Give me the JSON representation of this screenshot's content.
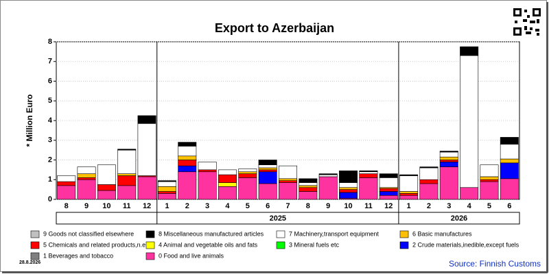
{
  "chart_data": {
    "type": "stacked-bar",
    "title": "Export to Azerbaijan",
    "ylabel": "* Million Euro",
    "categories": [
      "8",
      "9",
      "10",
      "11",
      "12",
      "1",
      "2",
      "3",
      "4",
      "5",
      "6",
      "7",
      "8",
      "9",
      "10",
      "11",
      "12",
      "1",
      "2",
      "3",
      "4",
      "5",
      "6"
    ],
    "years": [
      null,
      null,
      null,
      null,
      null,
      "2025",
      "2025",
      "2025",
      "2025",
      "2025",
      "2025",
      "2025",
      "2025",
      "2025",
      "2025",
      "2025",
      "2025",
      "2026",
      "2026",
      "2026",
      "2026",
      "2026",
      "2026"
    ],
    "ylim": [
      0,
      8
    ],
    "yticks": [
      0,
      1,
      2,
      3,
      4,
      5,
      6,
      7,
      8
    ],
    "grid": true,
    "series": [
      {
        "name": "9 Goods not classified elsewhere",
        "color": "#c0c0c0",
        "values": [
          0,
          0,
          0,
          0,
          0,
          0,
          0,
          0,
          0,
          0,
          0,
          0,
          0,
          0,
          0,
          0,
          0,
          0,
          0,
          0,
          0,
          0,
          0
        ]
      },
      {
        "name": "8 Miscellaneous manufactured articles",
        "color": "#000000",
        "values": [
          0,
          0,
          0,
          0.05,
          0.4,
          0.05,
          0.2,
          0,
          0,
          0,
          0.25,
          0,
          0.2,
          0.05,
          0.6,
          0.05,
          0.2,
          0.05,
          0.05,
          0.05,
          0.45,
          0,
          0.35
        ]
      },
      {
        "name": "7 Machinery,transport equipment",
        "color": "#ffffff",
        "values": [
          0.3,
          0.35,
          1.0,
          1.2,
          2.65,
          0.25,
          0.5,
          0.4,
          0.25,
          0.15,
          0.15,
          0.65,
          0.15,
          0.1,
          0.25,
          0.1,
          0.5,
          0.8,
          0.6,
          0.25,
          6.7,
          0.6,
          0.75
        ]
      },
      {
        "name": "6 Basic manufactures",
        "color": "#ffc000",
        "values": [
          0,
          0.2,
          0,
          0.1,
          0,
          0.25,
          0.2,
          0,
          0,
          0.1,
          0.1,
          0.1,
          0.1,
          0,
          0.1,
          0,
          0.05,
          0.1,
          0,
          0.15,
          0,
          0.15,
          0.2
        ]
      },
      {
        "name": "5 Chemicals and related products,n.e.s.",
        "color": "#ff0000",
        "values": [
          0.2,
          0.1,
          0.3,
          0.5,
          0.05,
          0.1,
          0.3,
          0.1,
          0.4,
          0.2,
          0.1,
          0.1,
          0.2,
          0,
          0.15,
          0.2,
          0.15,
          0.1,
          0.2,
          0.1,
          0,
          0.1,
          0
        ]
      },
      {
        "name": "4 Animal and vegetable oils and fats",
        "color": "#ffff00",
        "values": [
          0,
          0,
          0,
          0,
          0,
          0,
          0,
          0,
          0.2,
          0,
          0,
          0,
          0,
          0,
          0,
          0,
          0,
          0,
          0,
          0,
          0,
          0,
          0
        ]
      },
      {
        "name": "3 Mineral fuels etc",
        "color": "#00ff00",
        "values": [
          0,
          0,
          0,
          0,
          0,
          0,
          0,
          0,
          0,
          0,
          0,
          0,
          0,
          0,
          0,
          0,
          0,
          0,
          0,
          0,
          0,
          0,
          0
        ]
      },
      {
        "name": "2 Crude materials,inedible,except fuels",
        "color": "#0000ff",
        "values": [
          0,
          0,
          0,
          0,
          0,
          0,
          0.3,
          0,
          0,
          0,
          0.6,
          0,
          0,
          0,
          0.3,
          0,
          0.2,
          0,
          0,
          0.25,
          0,
          0,
          0.8
        ]
      },
      {
        "name": "1 Beverages and tobacco",
        "color": "#808080",
        "values": [
          0,
          0,
          0,
          0,
          0,
          0,
          0,
          0,
          0,
          0,
          0,
          0,
          0,
          0,
          0,
          0,
          0,
          0,
          0,
          0,
          0,
          0,
          0
        ]
      },
      {
        "name": "0 Food and live animals",
        "color": "#ff33a0",
        "values": [
          0.7,
          1.0,
          0.45,
          0.7,
          1.15,
          0.3,
          1.4,
          1.4,
          0.65,
          1.1,
          0.8,
          0.85,
          0.4,
          1.15,
          0.05,
          1.1,
          0.2,
          0.2,
          0.8,
          1.65,
          0.6,
          0.9,
          1.05
        ]
      }
    ],
    "date": "28.8.2026",
    "source": "Source: Finnish Customs"
  }
}
